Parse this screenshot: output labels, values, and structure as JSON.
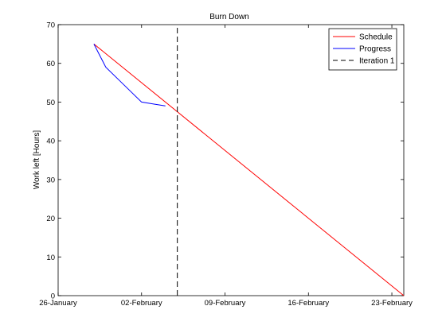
{
  "chart_data": {
    "type": "line",
    "title": "Burn Down",
    "xlabel": "",
    "ylabel": "Work left [Hours]",
    "xlim": [
      0,
      29
    ],
    "ylim": [
      0,
      70
    ],
    "xticks": [
      {
        "value": 0,
        "label": "26-January"
      },
      {
        "value": 7,
        "label": "02-February"
      },
      {
        "value": 14,
        "label": "09-February"
      },
      {
        "value": 21,
        "label": "16-February"
      },
      {
        "value": 28,
        "label": "23-February"
      }
    ],
    "yticks": [
      0,
      10,
      20,
      30,
      40,
      50,
      60,
      70
    ],
    "legend_position": "top-right",
    "series": [
      {
        "name": "Schedule",
        "color": "#ff0000",
        "style": "solid",
        "x": [
          3,
          29
        ],
        "y": [
          65,
          0
        ]
      },
      {
        "name": "Progress",
        "color": "#0000ff",
        "style": "solid",
        "x": [
          3,
          4,
          5,
          6,
          7,
          8,
          9
        ],
        "y": [
          65,
          59,
          56,
          53,
          50,
          49.5,
          49
        ]
      },
      {
        "name": "Iteration 1",
        "color": "#000000",
        "style": "dashed",
        "x": [
          10,
          10
        ],
        "y": [
          0,
          70
        ]
      }
    ]
  }
}
